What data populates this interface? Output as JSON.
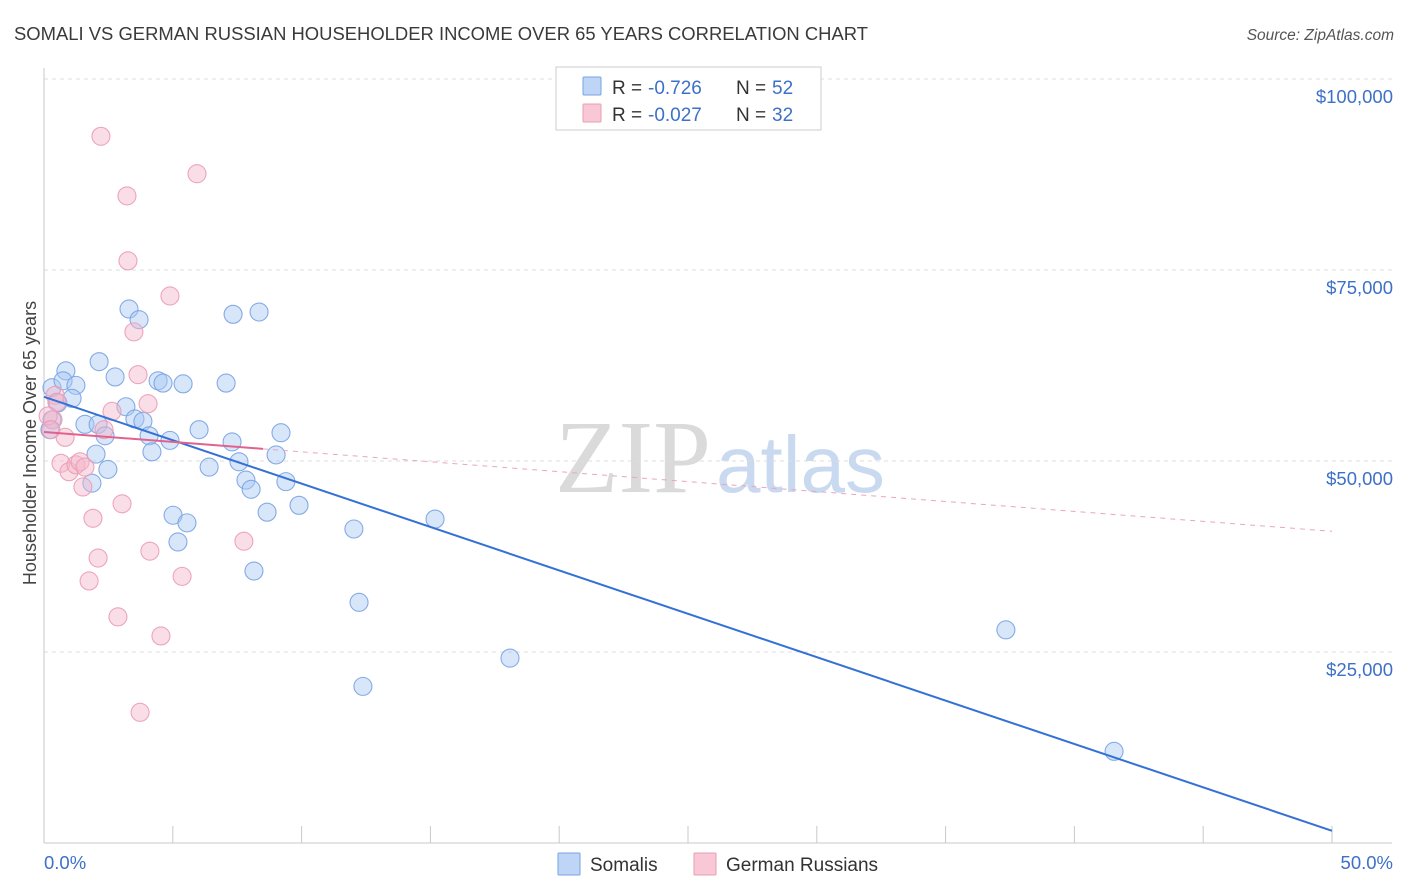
{
  "source": "Source: ZipAtlas.com",
  "watermark": {
    "zip": "ZIP",
    "atlas": "atlas"
  },
  "colors": {
    "accent_text": "#3d70c8",
    "title_text": "#3a3a3a",
    "grid": "#dddddd"
  },
  "stats_legend": {
    "rows": [
      {
        "r_label": "R =",
        "r_value": "-0.726",
        "n_label": "N =",
        "n_value": "52"
      },
      {
        "r_label": "R =",
        "r_value": "-0.027",
        "n_label": "N =",
        "n_value": "32"
      }
    ]
  },
  "chart_data": {
    "type": "scatter",
    "title": "SOMALI VS GERMAN RUSSIAN HOUSEHOLDER INCOME OVER 65 YEARS CORRELATION CHART",
    "xlabel": "",
    "ylabel": "Householder Income Over 65 years",
    "xlim": [
      0,
      50
    ],
    "ylim": [
      0,
      100000
    ],
    "x_ticks": [
      0,
      5,
      10,
      15,
      20,
      25,
      30,
      35,
      40,
      45,
      50
    ],
    "x_tick_labels": [
      "0.0%",
      "50.0%"
    ],
    "y_ticks": [
      25000,
      50000,
      75000,
      100000
    ],
    "y_tick_labels": [
      "$25,000",
      "$50,000",
      "$75,000",
      "$100,000"
    ],
    "grid": true,
    "legend_position": "bottom-center",
    "series": [
      {
        "name": "Somalis",
        "color": "#79a3e3",
        "fill": "#a9c7f3",
        "trend_color": "#3471d6",
        "trend": {
          "x0": 0,
          "y0": 58400,
          "x1": 50,
          "y1": 1600
        },
        "points": [
          [
            0.31,
            59600
          ],
          [
            0.85,
            61800
          ],
          [
            0.74,
            60500
          ],
          [
            1.24,
            59900
          ],
          [
            0.54,
            57600
          ],
          [
            1.09,
            58200
          ],
          [
            0.31,
            55400
          ],
          [
            0.23,
            54100
          ],
          [
            1.59,
            54800
          ],
          [
            2.1,
            54800
          ],
          [
            2.14,
            63000
          ],
          [
            2.76,
            61000
          ],
          [
            2.37,
            53300
          ],
          [
            2.02,
            50900
          ],
          [
            2.48,
            48900
          ],
          [
            1.86,
            47100
          ],
          [
            3.3,
            69900
          ],
          [
            3.69,
            68500
          ],
          [
            3.18,
            57100
          ],
          [
            3.53,
            55500
          ],
          [
            3.84,
            55200
          ],
          [
            4.08,
            53300
          ],
          [
            4.19,
            51200
          ],
          [
            4.43,
            60500
          ],
          [
            4.62,
            60200
          ],
          [
            5.4,
            60100
          ],
          [
            4.89,
            52700
          ],
          [
            6.02,
            54100
          ],
          [
            6.41,
            49200
          ],
          [
            5.01,
            42900
          ],
          [
            5.55,
            41900
          ],
          [
            5.2,
            39400
          ],
          [
            7.34,
            69200
          ],
          [
            8.35,
            69500
          ],
          [
            7.07,
            60200
          ],
          [
            7.3,
            52500
          ],
          [
            7.57,
            49900
          ],
          [
            7.84,
            47500
          ],
          [
            8.04,
            46300
          ],
          [
            9.01,
            50800
          ],
          [
            9.2,
            53700
          ],
          [
            9.39,
            47300
          ],
          [
            9.9,
            44200
          ],
          [
            8.66,
            43300
          ],
          [
            8.15,
            35600
          ],
          [
            12.03,
            41100
          ],
          [
            12.23,
            31500
          ],
          [
            12.38,
            20500
          ],
          [
            15.18,
            42400
          ],
          [
            18.09,
            24200
          ],
          [
            37.34,
            27900
          ],
          [
            41.54,
            12000
          ]
        ]
      },
      {
        "name": "German Russians",
        "color": "#eb9cb5",
        "fill": "#f5b5c9",
        "trend_color": "#e0628d",
        "trend_dash_color": "#eaa5bd",
        "trend": {
          "x0": 0,
          "y0": 53800,
          "x1": 50,
          "y1": 40800,
          "solid_until": 8.5
        },
        "points": [
          [
            2.21,
            92500
          ],
          [
            5.94,
            87600
          ],
          [
            3.22,
            84700
          ],
          [
            3.26,
            76200
          ],
          [
            4.89,
            71600
          ],
          [
            3.49,
            66900
          ],
          [
            3.65,
            61300
          ],
          [
            4.04,
            57500
          ],
          [
            2.64,
            56500
          ],
          [
            2.33,
            54100
          ],
          [
            0.43,
            58600
          ],
          [
            0.5,
            57700
          ],
          [
            0.35,
            55400
          ],
          [
            0.82,
            53100
          ],
          [
            0.66,
            49700
          ],
          [
            0.97,
            48600
          ],
          [
            1.24,
            49500
          ],
          [
            1.4,
            49900
          ],
          [
            1.59,
            49200
          ],
          [
            1.51,
            46600
          ],
          [
            1.9,
            42500
          ],
          [
            3.03,
            44400
          ],
          [
            2.1,
            37300
          ],
          [
            4.11,
            38200
          ],
          [
            5.36,
            34900
          ],
          [
            1.75,
            34300
          ],
          [
            2.87,
            29600
          ],
          [
            4.54,
            27100
          ],
          [
            3.73,
            17100
          ],
          [
            7.76,
            39500
          ],
          [
            0.16,
            55900
          ],
          [
            0.27,
            54100
          ]
        ]
      }
    ]
  }
}
